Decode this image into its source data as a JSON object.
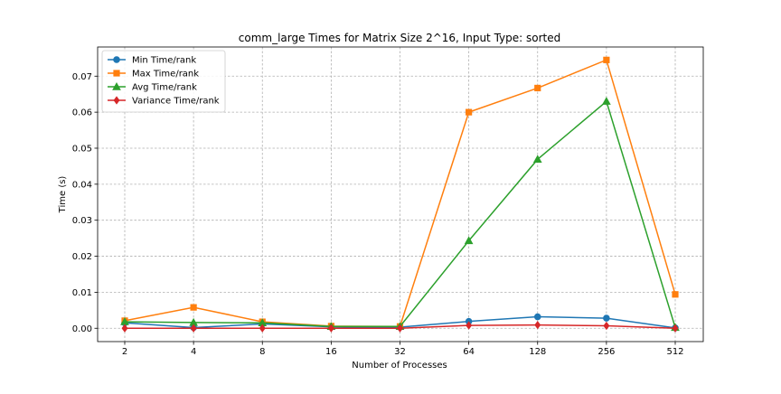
{
  "chart_data": {
    "type": "line",
    "title": "comm_large Times for Matrix Size 2^16, Input Type: sorted",
    "xlabel": "Number of Processes",
    "ylabel": "Time (s)",
    "categories": [
      "2",
      "4",
      "8",
      "16",
      "32",
      "64",
      "128",
      "256",
      "512"
    ],
    "ylim": [
      -0.0037,
      0.0781
    ],
    "yticks": [
      0.0,
      0.01,
      0.02,
      0.03,
      0.04,
      0.05,
      0.06,
      0.07
    ],
    "ytick_labels": [
      "0.00",
      "0.01",
      "0.02",
      "0.03",
      "0.04",
      "0.05",
      "0.06",
      "0.07"
    ],
    "grid": true,
    "legend_position": "top-left",
    "series": [
      {
        "name": "Min Time/rank",
        "color": "#1f77b4",
        "marker": "circle",
        "values": [
          0.0015,
          0.0002,
          0.0012,
          0.0004,
          0.0003,
          0.0019,
          0.0032,
          0.0028,
          0.0001
        ]
      },
      {
        "name": "Max Time/rank",
        "color": "#ff7f0e",
        "marker": "square",
        "values": [
          0.0021,
          0.0058,
          0.0018,
          0.0006,
          0.0005,
          0.06,
          0.0667,
          0.0745,
          0.0094
        ]
      },
      {
        "name": "Avg Time/rank",
        "color": "#2ca02c",
        "marker": "triangle",
        "values": [
          0.0018,
          0.0016,
          0.0015,
          0.0005,
          0.0005,
          0.0243,
          0.0469,
          0.063,
          0.0002
        ]
      },
      {
        "name": "Variance Time/rank",
        "color": "#d62728",
        "marker": "diamond",
        "values": [
          0.0,
          0.0,
          0.0,
          0.0,
          0.0,
          0.0008,
          0.0009,
          0.0007,
          0.0
        ]
      }
    ]
  }
}
